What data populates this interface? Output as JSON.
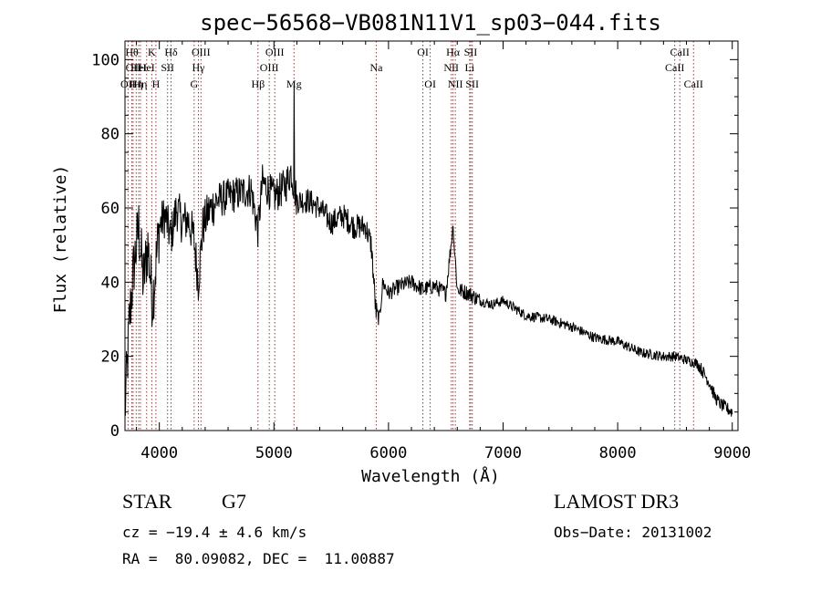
{
  "chart_data": {
    "type": "line",
    "title": "spec−56568−VB081N11V1_sp03−044.fits",
    "xlabel": "Wavelength (Å)",
    "ylabel": "Flux (relative)",
    "xlim": [
      3700,
      9050
    ],
    "ylim": [
      0,
      105
    ],
    "xticks": [
      4000,
      5000,
      6000,
      7000,
      8000,
      9000
    ],
    "yticks": [
      0,
      20,
      40,
      60,
      80,
      100
    ],
    "xtick_labels": [
      "4000",
      "5000",
      "6000",
      "7000",
      "8000",
      "9000"
    ],
    "ytick_labels": [
      "0",
      "20",
      "40",
      "60",
      "80",
      "100"
    ],
    "spectrum_anchors": {
      "x": [
        3700,
        3740,
        3780,
        3820,
        3860,
        3900,
        3940,
        3970,
        4000,
        4050,
        4100,
        4150,
        4200,
        4250,
        4300,
        4340,
        4380,
        4430,
        4500,
        4600,
        4700,
        4800,
        4860,
        4900,
        5000,
        5100,
        5150,
        5200,
        5300,
        5400,
        5500,
        5600,
        5700,
        5800,
        5850,
        5890,
        5920,
        5950,
        6000,
        6100,
        6200,
        6300,
        6400,
        6500,
        6563,
        6600,
        6700,
        6800,
        6900,
        7000,
        7200,
        7400,
        7600,
        7800,
        8000,
        8200,
        8400,
        8500,
        8600,
        8700,
        8800,
        8850,
        8900,
        8950,
        9000
      ],
      "y": [
        5,
        30,
        45,
        55,
        40,
        50,
        35,
        45,
        55,
        58,
        52,
        60,
        56,
        57,
        52,
        40,
        55,
        59,
        62,
        63,
        64,
        65,
        54,
        67,
        63,
        66,
        70,
        62,
        62,
        60,
        56,
        58,
        55,
        55,
        50,
        32,
        30,
        40,
        37,
        39,
        40,
        38,
        39,
        37,
        55,
        38,
        37,
        35,
        34,
        35,
        31,
        30,
        28,
        25,
        24,
        21,
        20,
        20,
        19,
        18,
        13,
        9,
        7,
        6,
        5
      ]
    },
    "line_identifications": [
      {
        "wavelength": 3727,
        "label": "OII",
        "row": 2
      },
      {
        "wavelength": 3760,
        "label": "Hθ",
        "row": 0
      },
      {
        "wavelength": 3771,
        "label": "OII",
        "row": 1
      },
      {
        "wavelength": 3798,
        "label": "Hη",
        "row": 2
      },
      {
        "wavelength": 3820,
        "label": "HeI",
        "row": 1
      },
      {
        "wavelength": 3835,
        "label": "Hη",
        "row": 2
      },
      {
        "wavelength": 3889,
        "label": "HeI",
        "row": 1
      },
      {
        "wavelength": 3934,
        "label": "K",
        "row": 0
      },
      {
        "wavelength": 3970,
        "label": "H",
        "row": 2
      },
      {
        "wavelength": 4072,
        "label": "SII",
        "row": 1
      },
      {
        "wavelength": 4102,
        "label": "Hδ",
        "row": 0
      },
      {
        "wavelength": 4304,
        "label": "G",
        "row": 2
      },
      {
        "wavelength": 4341,
        "label": "Hγ",
        "row": 1
      },
      {
        "wavelength": 4363,
        "label": "OIII",
        "row": 0
      },
      {
        "wavelength": 4861,
        "label": "Hβ",
        "row": 2
      },
      {
        "wavelength": 4959,
        "label": "OIII",
        "row": 1
      },
      {
        "wavelength": 5007,
        "label": "OIII",
        "row": 0
      },
      {
        "wavelength": 5175,
        "label": "Mg",
        "row": 2
      },
      {
        "wavelength": 5893,
        "label": "Na",
        "row": 1
      },
      {
        "wavelength": 6300,
        "label": "OI",
        "row": 0
      },
      {
        "wavelength": 6364,
        "label": "OI",
        "row": 2
      },
      {
        "wavelength": 6548,
        "label": "NII",
        "row": 1
      },
      {
        "wavelength": 6563,
        "label": "Hα",
        "row": 0
      },
      {
        "wavelength": 6583,
        "label": "NII",
        "row": 2
      },
      {
        "wavelength": 6708,
        "label": "Li",
        "row": 1
      },
      {
        "wavelength": 6717,
        "label": "SII",
        "row": 0
      },
      {
        "wavelength": 6731,
        "label": "SII",
        "row": 2
      },
      {
        "wavelength": 8498,
        "label": "CaII",
        "row": 1
      },
      {
        "wavelength": 8542,
        "label": "CaII",
        "row": 0
      },
      {
        "wavelength": 8662,
        "label": "CaII",
        "row": 2
      }
    ]
  },
  "info": {
    "object_class": "STAR",
    "subclass": "G7",
    "redshift": "cz = −19.4 ± 4.6 km/s",
    "coordinates": "RA =  80.09082, DEC =  11.00887",
    "survey": "LAMOST DR3",
    "obs_date": "Obs−Date: 20131002"
  },
  "colors": {
    "spectrum": "#000000",
    "line_markers": "#b03030",
    "axes": "#000000"
  }
}
